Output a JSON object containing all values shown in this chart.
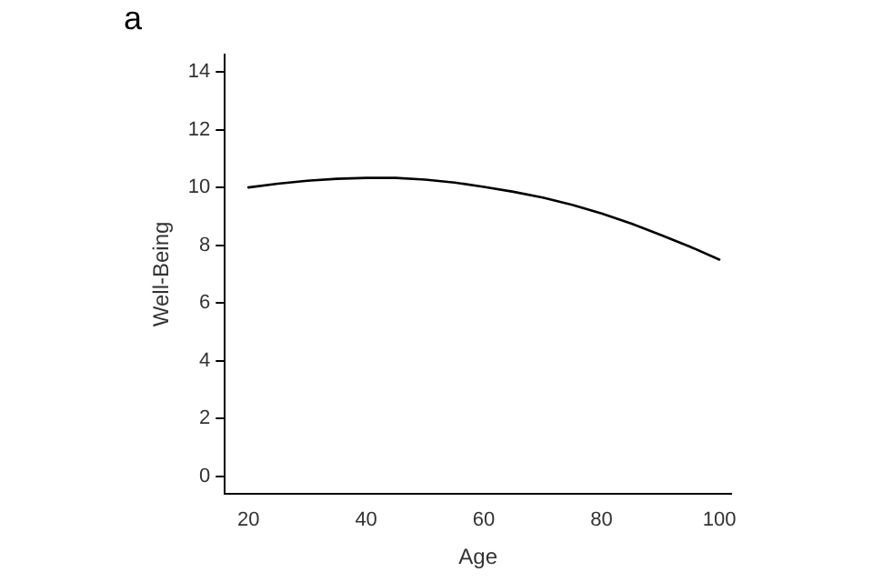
{
  "chart_data": {
    "type": "line",
    "xlabel": "Age",
    "ylabel": "Well-Being",
    "annotations": [
      "a"
    ],
    "x": [
      20,
      25,
      30,
      35,
      40,
      45,
      50,
      55,
      60,
      65,
      70,
      75,
      80,
      85,
      90,
      95,
      100
    ],
    "series": [
      {
        "color": "#000000",
        "values": [
          10.0,
          10.13,
          10.23,
          10.3,
          10.33,
          10.33,
          10.27,
          10.17,
          10.02,
          9.85,
          9.65,
          9.4,
          9.1,
          8.75,
          8.36,
          7.95,
          7.5
        ]
      }
    ],
    "xlim": [
      16,
      102
    ],
    "xticks": [
      20,
      40,
      60,
      80,
      100
    ],
    "ylim": [
      -0.6,
      14.6
    ],
    "yticks": [
      0,
      2,
      4,
      6,
      8,
      10,
      12,
      14
    ],
    "grid": false,
    "legend": false,
    "marker": "none",
    "line_style": "solid"
  }
}
